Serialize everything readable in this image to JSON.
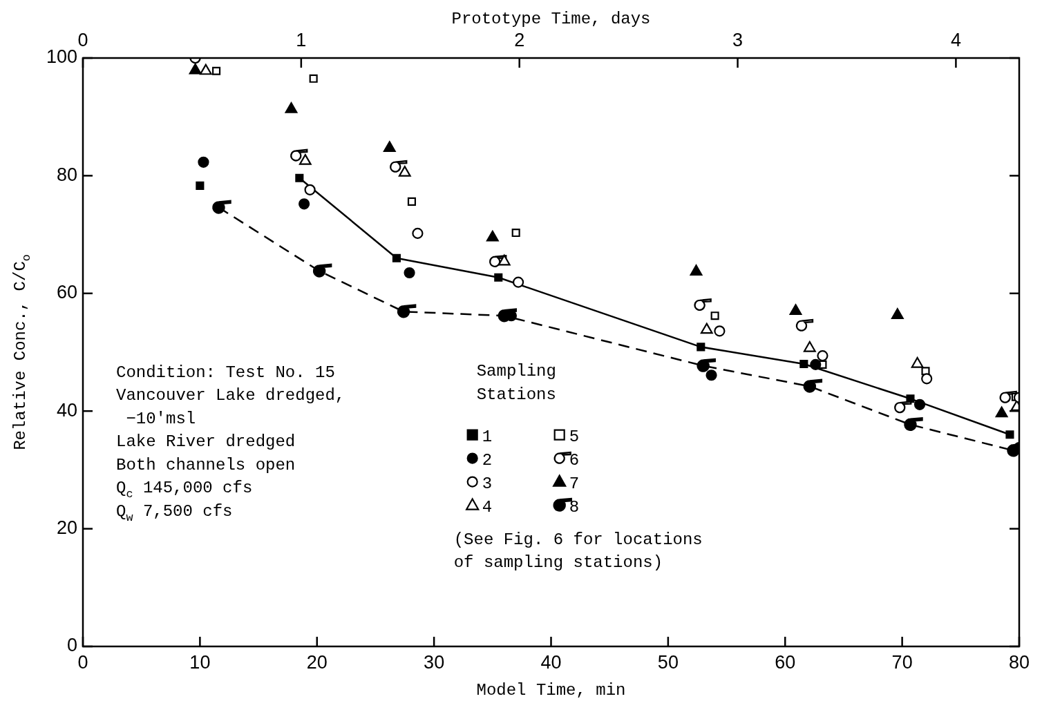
{
  "chart_data": {
    "type": "scatter",
    "xlabel": "Model Time, min",
    "ylabel": "Relative Conc., C/C$_{o}$",
    "x2label": "Prototype Time, days",
    "xlim": [
      0,
      80
    ],
    "xticks": [
      0,
      10,
      20,
      30,
      40,
      50,
      60,
      70,
      80
    ],
    "ylim": [
      0,
      100
    ],
    "yticks": [
      0,
      20,
      40,
      60,
      80,
      100
    ],
    "x2lim": [
      0,
      4.29
    ],
    "x2ticks": [
      0,
      1,
      2,
      3,
      4
    ],
    "grid": false,
    "legend": "center",
    "legend_title": "Sampling Stations",
    "annotations": [
      "Condition: Test No. 15\nVancouver Lake dredged,\n −10'msl\nLake River dredged\nBoth channels open\nQ$_{c}$ 145,000 cfs\nQ$_{w}$ 7,500 cfs",
      "(See Fig. 6 for locations\nof sampling stations)"
    ],
    "series": [
      {
        "name": "1",
        "color": "#000000",
        "marker": "square",
        "x": [
          10.0,
          18.5,
          26.8,
          35.5,
          52.8,
          61.6,
          70.7,
          79.2
        ],
        "values": [
          78.3,
          79.6,
          66.0,
          62.7,
          50.9,
          48.0,
          42.1,
          36.0
        ]
      },
      {
        "name": "2",
        "color": "#000000",
        "marker": "circle",
        "x": [
          10.3,
          18.9,
          27.9,
          36.6,
          53.7,
          62.6,
          71.5,
          80.0
        ],
        "values": [
          82.3,
          75.2,
          63.5,
          56.2,
          46.1,
          47.9,
          41.1,
          33.8
        ]
      },
      {
        "name": "3",
        "color": "#000000",
        "marker": "circle-open",
        "x": [
          19.4,
          28.6,
          37.2,
          54.4,
          63.2,
          72.1,
          80.0
        ],
        "values": [
          77.6,
          70.2,
          61.9,
          53.6,
          49.4,
          45.5,
          42.3
        ]
      },
      {
        "name": "4",
        "color": "#000000",
        "marker": "triangle-open",
        "x": [
          10.5,
          19.0,
          27.5,
          36.0,
          53.3,
          62.1,
          71.3,
          79.8
        ],
        "values": [
          97.8,
          82.5,
          80.5,
          65.4,
          53.8,
          50.7,
          48.0,
          40.7
        ]
      },
      {
        "name": "5",
        "color": "#000000",
        "marker": "square-open",
        "x": [
          11.4,
          19.7,
          28.1,
          37.0,
          54.0,
          63.2,
          72.0,
          79.7
        ],
        "values": [
          97.8,
          96.5,
          75.6,
          70.3,
          56.2,
          47.9,
          46.8,
          42.4
        ]
      },
      {
        "name": "6",
        "color": "#000000",
        "marker": "circle-tail-open",
        "x": [
          9.6,
          18.2,
          26.7,
          35.2,
          52.7,
          61.4,
          69.8,
          78.8
        ],
        "values": [
          100.0,
          83.4,
          81.5,
          65.4,
          58.0,
          54.5,
          40.6,
          42.3
        ]
      },
      {
        "name": "7",
        "color": "#000000",
        "marker": "triangle",
        "x": [
          9.6,
          17.8,
          26.2,
          35.0,
          52.4,
          60.9,
          69.6,
          78.5
        ],
        "values": [
          97.9,
          91.3,
          84.7,
          69.5,
          63.7,
          57.0,
          56.3,
          39.6
        ]
      },
      {
        "name": "8",
        "type": "line",
        "color": "#000000",
        "marker": "circle-tail",
        "line_style": "dashed",
        "x": [
          11.6,
          20.2,
          27.4,
          36.0,
          53.0,
          62.1,
          70.7,
          79.5
        ],
        "values": [
          74.6,
          63.8,
          56.9,
          56.2,
          47.7,
          44.2,
          37.7,
          33.3
        ]
      },
      {
        "type": "line",
        "color": "#000000",
        "marker": "none",
        "line_style": "solid",
        "x": [
          18.5,
          26.8,
          35.5,
          52.8,
          61.6,
          70.7,
          79.2
        ],
        "values": [
          79.6,
          66.0,
          62.7,
          50.9,
          48.0,
          42.1,
          36.0
        ]
      }
    ]
  }
}
